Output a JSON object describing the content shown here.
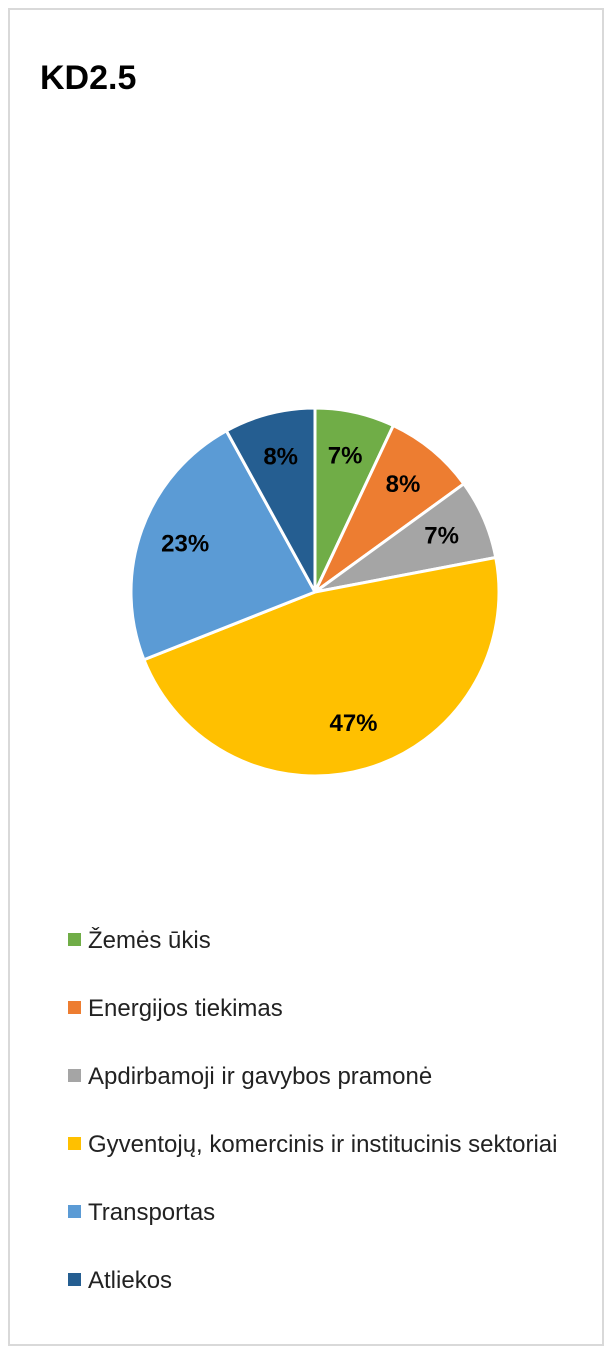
{
  "chart_data": {
    "type": "pie",
    "title": "KD2.5",
    "categories": [
      "Žemės ūkis",
      "Energijos tiekimas",
      "Apdirbamoji ir gavybos pramonė",
      "Gyventojų, komercinis ir institucinis sektoriai",
      "Transportas",
      "Atliekos"
    ],
    "values": [
      7,
      8,
      7,
      47,
      23,
      8
    ],
    "value_labels": [
      "7%",
      "8%",
      "7%",
      "47%",
      "23%",
      "8%"
    ],
    "colors": [
      "#70ad47",
      "#ed7d31",
      "#a5a5a5",
      "#ffc000",
      "#5b9bd5",
      "#255e91"
    ],
    "legend": "bottom"
  }
}
